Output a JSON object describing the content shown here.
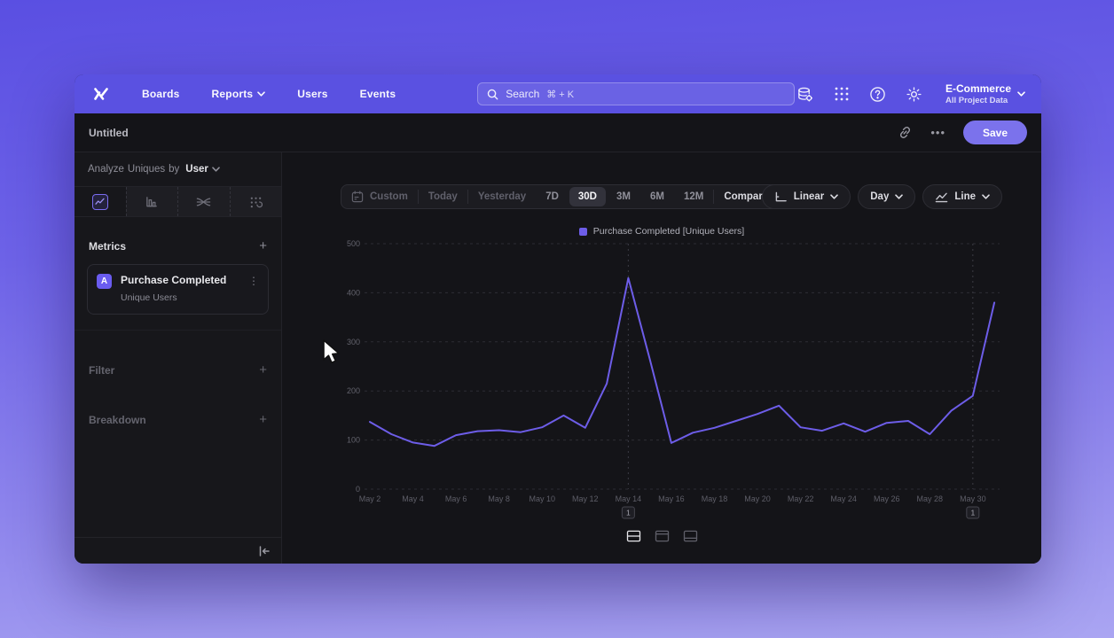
{
  "window": {
    "nav": {
      "brand": "Mixpanel",
      "items": [
        "Boards",
        "Reports",
        "Users",
        "Events"
      ],
      "search": {
        "placeholder": "Search",
        "shortcut": "⌘ + K"
      },
      "project": {
        "name": "E-Commerce",
        "scope": "All Project Data"
      }
    },
    "titlebar": {
      "title": "Untitled",
      "more_label": "•••",
      "save_label": "Save"
    },
    "sidebar": {
      "analyze": {
        "prefix": "Analyze",
        "measure": "Uniques",
        "connector": "by",
        "entity": "User"
      },
      "metrics": {
        "label": "Metrics",
        "add": "+"
      },
      "metric_card": {
        "badge": "A",
        "title": "Purchase Completed",
        "subtitle": "Unique Users",
        "menu": "⋮"
      },
      "filter": {
        "label": "Filter",
        "add": "+"
      },
      "breakdown": {
        "label": "Breakdown",
        "add": "+"
      }
    },
    "toolbar": {
      "ranges": [
        "Custom",
        "Today",
        "Yesterday",
        "7D",
        "30D",
        "3M",
        "6M",
        "12M"
      ],
      "active_range": "30D",
      "compare": "Compare",
      "scale": "Linear",
      "interval": "Day",
      "chart_type": "Line"
    }
  },
  "chart_data": {
    "type": "line",
    "legend": "Purchase Completed [Unique Users]",
    "legend_position": "top-center",
    "x": [
      "May 2",
      "May 3",
      "May 4",
      "May 5",
      "May 6",
      "May 7",
      "May 8",
      "May 9",
      "May 10",
      "May 11",
      "May 12",
      "May 13",
      "May 14",
      "May 15",
      "May 16",
      "May 17",
      "May 18",
      "May 19",
      "May 20",
      "May 21",
      "May 22",
      "May 23",
      "May 24",
      "May 25",
      "May 26",
      "May 27",
      "May 28",
      "May 29",
      "May 30",
      "May 31"
    ],
    "x_tick_every": 2,
    "series": [
      {
        "name": "Purchase Completed [Unique Users]",
        "color": "#6d5de8",
        "values": [
          137,
          112,
          95,
          88,
          110,
          118,
          120,
          116,
          126,
          150,
          125,
          215,
          430,
          265,
          94,
          115,
          125,
          139,
          153,
          170,
          126,
          119,
          134,
          117,
          135,
          139,
          112,
          160,
          190,
          380
        ]
      }
    ],
    "ylim": [
      0,
      500
    ],
    "yticks": [
      0,
      100,
      200,
      300,
      400,
      500
    ],
    "grid": "dashed-horizontal",
    "annotations": [
      {
        "index": 12,
        "label": "1"
      },
      {
        "index": 28,
        "label": "1"
      }
    ]
  }
}
